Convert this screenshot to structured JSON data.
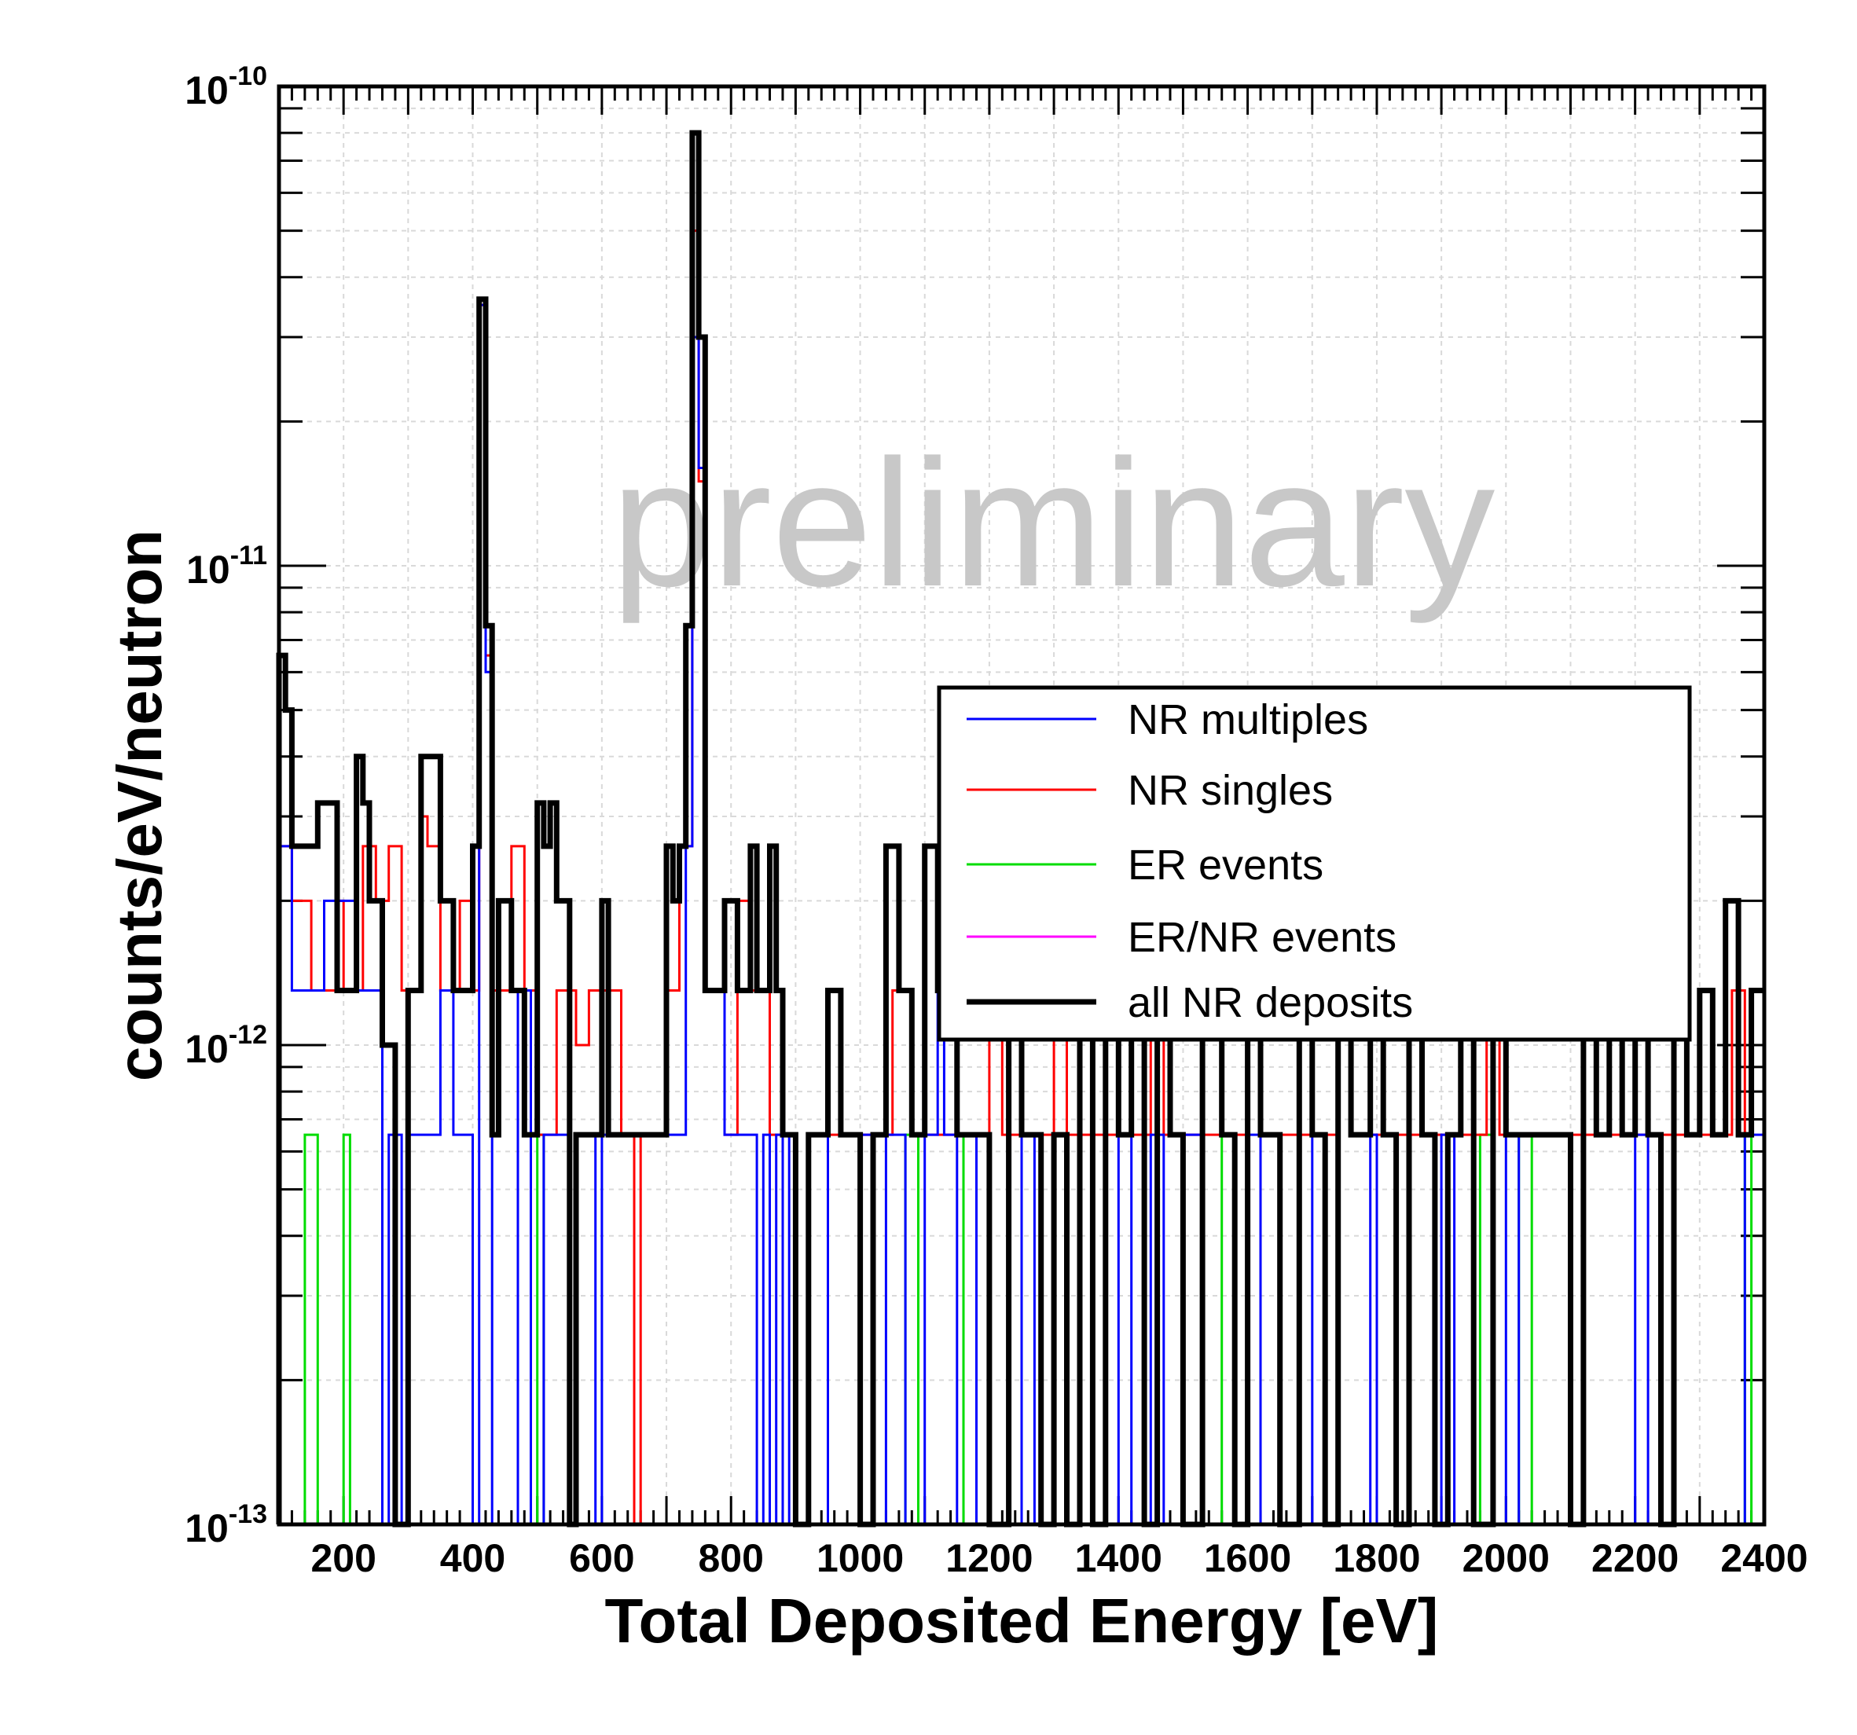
{
  "chart_data": {
    "type": "line",
    "subtype": "step-histogram",
    "xlabel": "Total Deposited Energy [eV]",
    "ylabel": "counts/eV/neutron",
    "xlim": [
      100,
      2400
    ],
    "ylim": [
      1e-13,
      1e-10
    ],
    "yscale": "log",
    "grid": true,
    "legend_position": "right",
    "watermark": "preliminary",
    "x_ticks": [
      {
        "value": 200,
        "label": "200"
      },
      {
        "value": 400,
        "label": "400"
      },
      {
        "value": 600,
        "label": "600"
      },
      {
        "value": 800,
        "label": "800"
      },
      {
        "value": 1000,
        "label": "1000"
      },
      {
        "value": 1200,
        "label": "1200"
      },
      {
        "value": 1400,
        "label": "1400"
      },
      {
        "value": 1600,
        "label": "1600"
      },
      {
        "value": 1800,
        "label": "1800"
      },
      {
        "value": 2000,
        "label": "2000"
      },
      {
        "value": 2200,
        "label": "2200"
      },
      {
        "value": 2400,
        "label": "2400"
      }
    ],
    "y_ticks": [
      {
        "value": 1e-13,
        "base": "10",
        "exp": "-13"
      },
      {
        "value": 1e-12,
        "base": "10",
        "exp": "-12"
      },
      {
        "value": 1e-11,
        "base": "10",
        "exp": "-11"
      },
      {
        "value": 1e-10,
        "base": "10",
        "exp": "-10"
      }
    ],
    "series": [
      {
        "name": "NR multiples",
        "color": "#0000ff",
        "points": [
          [
            100,
            2.6e-12
          ],
          [
            120,
            1.3e-12
          ],
          [
            170,
            2e-12
          ],
          [
            220,
            1.3e-12
          ],
          [
            260,
            1e-13
          ],
          [
            270,
            6.5e-13
          ],
          [
            290,
            1e-13
          ],
          [
            300,
            6.5e-13
          ],
          [
            350,
            1.3e-12
          ],
          [
            370,
            6.5e-13
          ],
          [
            400,
            1e-13
          ],
          [
            410,
            3.5e-11
          ],
          [
            420,
            6e-12
          ],
          [
            430,
            1e-13
          ],
          [
            470,
            1.3e-12
          ],
          [
            490,
            1e-13
          ],
          [
            510,
            6.5e-13
          ],
          [
            550,
            1e-13
          ],
          [
            560,
            6.5e-13
          ],
          [
            590,
            1e-13
          ],
          [
            600,
            6.5e-13
          ],
          [
            730,
            2.6e-12
          ],
          [
            740,
            3e-11
          ],
          [
            750,
            1.6e-11
          ],
          [
            760,
            1.3e-12
          ],
          [
            790,
            6.5e-13
          ],
          [
            840,
            1e-13
          ],
          [
            850,
            6.5e-13
          ],
          [
            860,
            1e-13
          ],
          [
            870,
            6.5e-13
          ],
          [
            880,
            1e-13
          ],
          [
            890,
            6.5e-13
          ],
          [
            900,
            1e-13
          ],
          [
            920,
            6.5e-13
          ],
          [
            950,
            1e-13
          ],
          [
            1000,
            6.5e-13
          ],
          [
            1020,
            1e-13
          ],
          [
            1040,
            6.5e-13
          ],
          [
            1070,
            1e-13
          ],
          [
            1100,
            6.5e-13
          ],
          [
            1120,
            1.3e-12
          ],
          [
            1130,
            6.5e-13
          ],
          [
            1150,
            1e-13
          ],
          [
            1180,
            6.5e-13
          ],
          [
            1200,
            1e-13
          ],
          [
            1250,
            6.5e-13
          ],
          [
            1270,
            1e-13
          ],
          [
            1300,
            6.5e-13
          ],
          [
            1320,
            1e-13
          ],
          [
            1400,
            6.5e-13
          ],
          [
            1420,
            1e-13
          ],
          [
            1450,
            6.5e-13
          ],
          [
            1470,
            1e-13
          ],
          [
            1500,
            6.5e-13
          ],
          [
            1530,
            1e-13
          ],
          [
            1600,
            6.5e-13
          ],
          [
            1620,
            1e-13
          ],
          [
            1700,
            6.5e-13
          ],
          [
            1720,
            1e-13
          ],
          [
            1790,
            6.5e-13
          ],
          [
            1800,
            1e-13
          ],
          [
            1900,
            6.5e-13
          ],
          [
            1920,
            1e-13
          ],
          [
            2000,
            6.5e-13
          ],
          [
            2020,
            1e-13
          ],
          [
            2200,
            6.5e-13
          ],
          [
            2220,
            1e-13
          ],
          [
            2360,
            1e-13
          ],
          [
            2370,
            6.5e-13
          ],
          [
            2400,
            6.5e-13
          ]
        ]
      },
      {
        "name": "NR singles",
        "color": "#ff0000",
        "points": [
          [
            100,
            2.6e-12
          ],
          [
            120,
            2e-12
          ],
          [
            150,
            1.3e-12
          ],
          [
            190,
            2e-12
          ],
          [
            200,
            1.3e-12
          ],
          [
            230,
            2.6e-12
          ],
          [
            250,
            2e-12
          ],
          [
            270,
            2.6e-12
          ],
          [
            290,
            1.3e-12
          ],
          [
            320,
            3e-12
          ],
          [
            330,
            2.6e-12
          ],
          [
            350,
            1.3e-12
          ],
          [
            380,
            2e-12
          ],
          [
            400,
            1.3e-12
          ],
          [
            410,
            3.5e-11
          ],
          [
            420,
            6.5e-12
          ],
          [
            430,
            1.3e-12
          ],
          [
            460,
            2.6e-12
          ],
          [
            480,
            1.3e-12
          ],
          [
            500,
            6.5e-13
          ],
          [
            530,
            1.3e-12
          ],
          [
            560,
            1e-12
          ],
          [
            580,
            1.3e-12
          ],
          [
            630,
            6.5e-13
          ],
          [
            650,
            1e-13
          ],
          [
            660,
            6.5e-13
          ],
          [
            700,
            1.3e-12
          ],
          [
            720,
            2.6e-12
          ],
          [
            740,
            5e-11
          ],
          [
            750,
            1.5e-11
          ],
          [
            760,
            1.3e-12
          ],
          [
            790,
            6.5e-13
          ],
          [
            810,
            2e-12
          ],
          [
            830,
            1.3e-12
          ],
          [
            860,
            6.5e-13
          ],
          [
            900,
            1e-13
          ],
          [
            920,
            6.5e-13
          ],
          [
            1020,
            6.5e-13
          ],
          [
            1050,
            1.3e-12
          ],
          [
            1080,
            6.5e-13
          ],
          [
            1200,
            1.3e-12
          ],
          [
            1220,
            6.5e-13
          ],
          [
            1300,
            1.3e-12
          ],
          [
            1320,
            6.5e-13
          ],
          [
            1450,
            1.3e-12
          ],
          [
            1470,
            6.5e-13
          ],
          [
            1600,
            1.3e-12
          ],
          [
            1620,
            6.5e-13
          ],
          [
            1740,
            1.3e-12
          ],
          [
            1760,
            6.5e-13
          ],
          [
            1970,
            1.3e-12
          ],
          [
            1990,
            6.5e-13
          ],
          [
            2350,
            1.3e-12
          ],
          [
            2370,
            6.5e-13
          ],
          [
            2380,
            1.3e-12
          ],
          [
            2400,
            1.3e-12
          ]
        ]
      },
      {
        "name": "ER events",
        "color": "#00dd00",
        "points": [
          [
            100,
            1e-13
          ],
          [
            140,
            6.5e-13
          ],
          [
            160,
            1e-13
          ],
          [
            200,
            6.5e-13
          ],
          [
            210,
            1e-13
          ],
          [
            500,
            6.5e-13
          ],
          [
            510,
            1e-13
          ],
          [
            1070,
            6.5e-13
          ],
          [
            1090,
            1e-13
          ],
          [
            1160,
            6.5e-13
          ],
          [
            1180,
            1e-13
          ],
          [
            1300,
            6.5e-13
          ],
          [
            1320,
            1e-13
          ],
          [
            1560,
            6.5e-13
          ],
          [
            1580,
            1e-13
          ],
          [
            1960,
            6.5e-13
          ],
          [
            1980,
            1e-13
          ],
          [
            2020,
            6.5e-13
          ],
          [
            2040,
            1e-13
          ],
          [
            2370,
            6.5e-13
          ],
          [
            2380,
            1e-13
          ],
          [
            2400,
            1e-13
          ]
        ]
      },
      {
        "name": "ER/NR events",
        "color": "#ff00ff",
        "points": [
          [
            100,
            1e-13
          ],
          [
            2400,
            1e-13
          ]
        ]
      },
      {
        "name": "all NR deposits",
        "color": "#000000",
        "points": [
          [
            100,
            6.5e-12
          ],
          [
            110,
            5e-12
          ],
          [
            120,
            2.6e-12
          ],
          [
            160,
            3.2e-12
          ],
          [
            190,
            1.3e-12
          ],
          [
            220,
            4e-12
          ],
          [
            230,
            3.2e-12
          ],
          [
            240,
            2e-12
          ],
          [
            260,
            1e-12
          ],
          [
            280,
            1e-13
          ],
          [
            300,
            1.3e-12
          ],
          [
            320,
            4e-12
          ],
          [
            350,
            2e-12
          ],
          [
            370,
            1.3e-12
          ],
          [
            400,
            2.6e-12
          ],
          [
            410,
            3.6e-11
          ],
          [
            420,
            7.5e-12
          ],
          [
            430,
            6.5e-13
          ],
          [
            440,
            2e-12
          ],
          [
            460,
            1.3e-12
          ],
          [
            480,
            6.5e-13
          ],
          [
            500,
            3.2e-12
          ],
          [
            510,
            2.6e-12
          ],
          [
            520,
            3.2e-12
          ],
          [
            530,
            2e-12
          ],
          [
            550,
            1e-13
          ],
          [
            560,
            6.5e-13
          ],
          [
            600,
            2e-12
          ],
          [
            610,
            6.5e-13
          ],
          [
            700,
            2.6e-12
          ],
          [
            710,
            2e-12
          ],
          [
            720,
            2.6e-12
          ],
          [
            730,
            7.5e-12
          ],
          [
            740,
            8e-11
          ],
          [
            750,
            3e-11
          ],
          [
            760,
            1.3e-12
          ],
          [
            790,
            2e-12
          ],
          [
            810,
            1.3e-12
          ],
          [
            830,
            2.6e-12
          ],
          [
            840,
            1.3e-12
          ],
          [
            860,
            2.6e-12
          ],
          [
            870,
            1.3e-12
          ],
          [
            880,
            6.5e-13
          ],
          [
            900,
            1e-13
          ],
          [
            920,
            6.5e-13
          ],
          [
            950,
            1.3e-12
          ],
          [
            970,
            6.5e-13
          ],
          [
            1000,
            1e-13
          ],
          [
            1020,
            6.5e-13
          ],
          [
            1040,
            2.6e-12
          ],
          [
            1060,
            1.3e-12
          ],
          [
            1080,
            6.5e-13
          ],
          [
            1100,
            2.6e-12
          ],
          [
            1120,
            1.3e-12
          ],
          [
            1150,
            6.5e-13
          ],
          [
            1200,
            1e-13
          ],
          [
            1230,
            1.3e-12
          ],
          [
            1250,
            6.5e-13
          ],
          [
            1280,
            1e-13
          ],
          [
            1300,
            6.5e-13
          ],
          [
            1320,
            1e-13
          ],
          [
            1340,
            1.3e-12
          ],
          [
            1360,
            1e-13
          ],
          [
            1380,
            1.3e-12
          ],
          [
            1400,
            6.5e-13
          ],
          [
            1420,
            1.3e-12
          ],
          [
            1440,
            1e-13
          ],
          [
            1460,
            1.3e-12
          ],
          [
            1480,
            6.5e-13
          ],
          [
            1500,
            1e-13
          ],
          [
            1530,
            1.3e-12
          ],
          [
            1560,
            6.5e-13
          ],
          [
            1580,
            1e-13
          ],
          [
            1600,
            1.3e-12
          ],
          [
            1620,
            6.5e-13
          ],
          [
            1650,
            1e-13
          ],
          [
            1680,
            1.3e-12
          ],
          [
            1700,
            6.5e-13
          ],
          [
            1720,
            1e-13
          ],
          [
            1740,
            1.3e-12
          ],
          [
            1760,
            6.5e-13
          ],
          [
            1790,
            1.3e-12
          ],
          [
            1810,
            6.5e-13
          ],
          [
            1830,
            1e-13
          ],
          [
            1850,
            1.3e-12
          ],
          [
            1870,
            6.5e-13
          ],
          [
            1890,
            1e-13
          ],
          [
            1910,
            6.5e-13
          ],
          [
            1930,
            1.3e-12
          ],
          [
            1950,
            1e-13
          ],
          [
            1980,
            1.3e-12
          ],
          [
            2000,
            6.5e-13
          ],
          [
            2100,
            1e-13
          ],
          [
            2120,
            1.3e-12
          ],
          [
            2140,
            6.5e-13
          ],
          [
            2160,
            1.3e-12
          ],
          [
            2180,
            6.5e-13
          ],
          [
            2200,
            1.3e-12
          ],
          [
            2220,
            6.5e-13
          ],
          [
            2240,
            1e-13
          ],
          [
            2260,
            1.3e-12
          ],
          [
            2280,
            6.5e-13
          ],
          [
            2300,
            1.3e-12
          ],
          [
            2320,
            6.5e-13
          ],
          [
            2340,
            2e-12
          ],
          [
            2360,
            6.5e-13
          ],
          [
            2380,
            1.3e-12
          ],
          [
            2400,
            1.3e-12
          ]
        ]
      }
    ]
  }
}
